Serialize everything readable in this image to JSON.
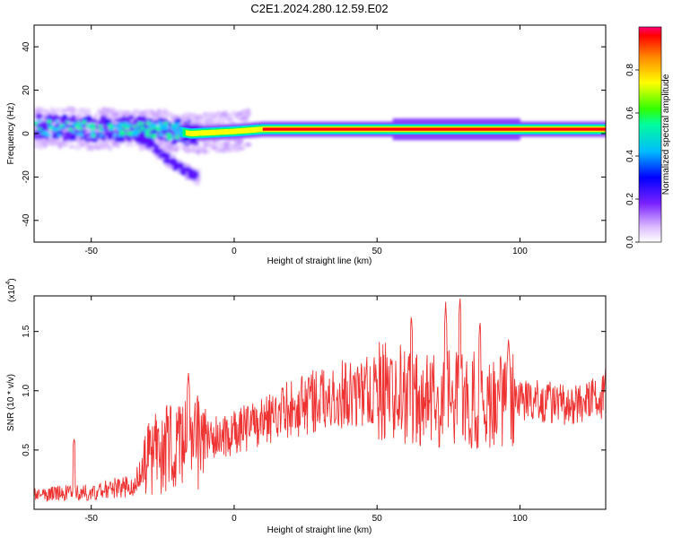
{
  "title": "C2E1.2024.280.12.59.E02",
  "colorbar": {
    "label": "Normalized spectral amplitude",
    "ticks": [
      "0.0",
      "0.2",
      "0.4",
      "0.6",
      "0.8"
    ],
    "tick_values": [
      0.0,
      0.2,
      0.4,
      0.6,
      0.8
    ],
    "range": [
      0,
      1
    ]
  },
  "chart_data": [
    {
      "type": "heatmap",
      "xlabel": "Height of straight line (km)",
      "ylabel": "Frequency (Hz)",
      "xlim": [
        -70,
        130
      ],
      "ylim": [
        -50,
        50
      ],
      "x_ticks": [
        -50,
        0,
        50,
        100
      ],
      "y_ticks": [
        -40,
        -20,
        0,
        20,
        40
      ],
      "x_tick_labels": [
        "-50",
        "0",
        "50",
        "100"
      ],
      "y_tick_labels": [
        "-40",
        "-20",
        "0",
        "20",
        "40"
      ],
      "colormap": [
        "#ffffff",
        "#cc99ff",
        "#6600ff",
        "#0000ff",
        "#00ccff",
        "#00ff66",
        "#ffff00",
        "#ff8800",
        "#ff0000",
        "#ff0066"
      ],
      "ridge": [
        {
          "x": -70,
          "f": 3
        },
        {
          "x": -50,
          "f": 2
        },
        {
          "x": -30,
          "f": 2
        },
        {
          "x": -20,
          "f": 1
        },
        {
          "x": -15,
          "f": 0
        },
        {
          "x": 0,
          "f": 1
        },
        {
          "x": 10,
          "f": 2
        },
        {
          "x": 50,
          "f": 2
        },
        {
          "x": 100,
          "f": 2
        },
        {
          "x": 130,
          "f": 2
        }
      ],
      "descending_branch": [
        {
          "x": -35,
          "f": 0
        },
        {
          "x": -30,
          "f": -4
        },
        {
          "x": -25,
          "f": -10
        },
        {
          "x": -20,
          "f": -15
        },
        {
          "x": -13,
          "f": -20
        }
      ]
    },
    {
      "type": "line",
      "xlabel": "Height of straight line (km)",
      "ylabel": "SNR (10 * v/v)",
      "y_multiplier": "(x10",
      "y_multiplier_exp": "4",
      "xlim": [
        -70,
        130
      ],
      "ylim": [
        0,
        1.8
      ],
      "x_ticks": [
        -50,
        0,
        50,
        100
      ],
      "y_ticks": [
        0.5,
        1.0,
        1.5
      ],
      "x_tick_labels": [
        "-50",
        "0",
        "50",
        "100"
      ],
      "y_tick_labels": [
        "0.5",
        "1.0",
        "1.5"
      ],
      "color": "#ee3333",
      "envelope": [
        {
          "x": -70,
          "y": 0.12
        },
        {
          "x": -50,
          "y": 0.15
        },
        {
          "x": -35,
          "y": 0.2
        },
        {
          "x": -28,
          "y": 0.5
        },
        {
          "x": -15,
          "y": 0.55
        },
        {
          "x": 0,
          "y": 0.65
        },
        {
          "x": 10,
          "y": 0.75
        },
        {
          "x": 20,
          "y": 0.85
        },
        {
          "x": 30,
          "y": 0.93
        },
        {
          "x": 40,
          "y": 0.98
        },
        {
          "x": 50,
          "y": 1.0
        },
        {
          "x": 60,
          "y": 0.95
        },
        {
          "x": 70,
          "y": 0.95
        },
        {
          "x": 80,
          "y": 0.95
        },
        {
          "x": 90,
          "y": 0.9
        },
        {
          "x": 98,
          "y": 0.95
        },
        {
          "x": 110,
          "y": 0.9
        },
        {
          "x": 120,
          "y": 0.88
        },
        {
          "x": 130,
          "y": 0.95
        }
      ],
      "peaks": [
        {
          "x": -56,
          "y": 0.6
        },
        {
          "x": -16,
          "y": 1.15
        },
        {
          "x": 55,
          "y": 1.25
        },
        {
          "x": 62,
          "y": 1.65
        },
        {
          "x": 74,
          "y": 1.75
        },
        {
          "x": 79,
          "y": 1.8
        },
        {
          "x": 86,
          "y": 1.6
        },
        {
          "x": 96,
          "y": 1.45
        },
        {
          "x": 130,
          "y": 1.2
        }
      ]
    }
  ]
}
